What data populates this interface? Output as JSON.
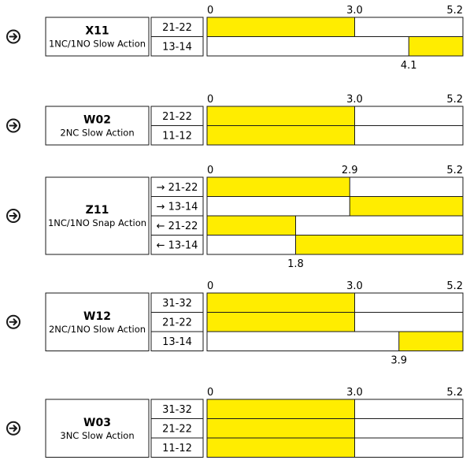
{
  "colors": {
    "fill": "#ffed00",
    "line": "#1a1a1a",
    "background": "#ffffff"
  },
  "icon": "circled-arrow-right-icon",
  "groups": [
    {
      "code": "X11",
      "desc": "1NC/1NO Slow Action",
      "scale": {
        "start": "0",
        "mid": "3.0",
        "end": "5.2"
      },
      "rows": [
        {
          "label": "21-22",
          "bar": [
            0,
            3.0
          ]
        },
        {
          "label": "13-14",
          "bar": [
            4.1,
            5.2
          ],
          "marker": {
            "at": 4.1,
            "text": "4.1"
          }
        }
      ]
    },
    {
      "code": "W02",
      "desc": "2NC Slow Action",
      "scale": {
        "start": "0",
        "mid": "3.0",
        "end": "5.2"
      },
      "rows": [
        {
          "label": "21-22",
          "bar": [
            0,
            3.0
          ]
        },
        {
          "label": "11-12",
          "bar": [
            0,
            3.0
          ]
        }
      ]
    },
    {
      "code": "Z11",
      "desc": "1NC/1NO Snap Action",
      "scale": {
        "start": "0",
        "mid": "2.9",
        "end": "5.2"
      },
      "rows": [
        {
          "label": "→ 21-22",
          "bar": [
            0,
            2.9
          ]
        },
        {
          "label": "→ 13-14",
          "bar": [
            2.9,
            5.2
          ]
        },
        {
          "label": "← 21-22",
          "bar": [
            0,
            1.8
          ]
        },
        {
          "label": "← 13-14",
          "bar": [
            1.8,
            5.2
          ],
          "marker": {
            "at": 1.8,
            "text": "1.8"
          }
        }
      ]
    },
    {
      "code": "W12",
      "desc": "2NC/1NO Slow Action",
      "scale": {
        "start": "0",
        "mid": "3.0",
        "end": "5.2"
      },
      "rows": [
        {
          "label": "31-32",
          "bar": [
            0,
            3.0
          ]
        },
        {
          "label": "21-22",
          "bar": [
            0,
            3.0
          ]
        },
        {
          "label": "13-14",
          "bar": [
            3.9,
            5.2
          ],
          "marker": {
            "at": 3.9,
            "text": "3.9"
          }
        }
      ]
    },
    {
      "code": "W03",
      "desc": "3NC Slow Action",
      "scale": {
        "start": "0",
        "mid": "3.0",
        "end": "5.2"
      },
      "rows": [
        {
          "label": "31-32",
          "bar": [
            0,
            3.0
          ]
        },
        {
          "label": "21-22",
          "bar": [
            0,
            3.0
          ]
        },
        {
          "label": "11-12",
          "bar": [
            0,
            3.0
          ]
        }
      ]
    }
  ]
}
